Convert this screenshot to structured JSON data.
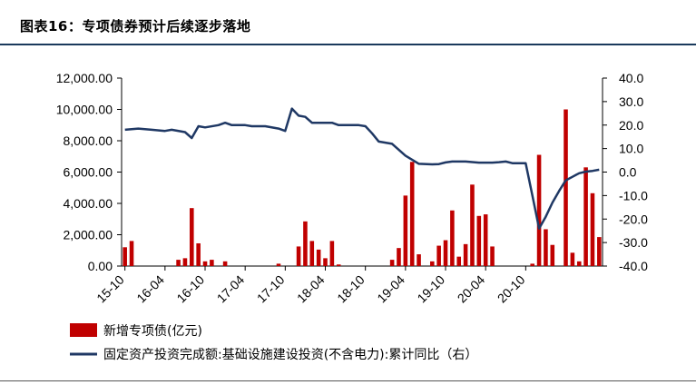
{
  "title": "图表16：专项债券预计后续逐步落地",
  "chart_data": {
    "type": "bar+line",
    "x_tick_labels": [
      "15-10",
      "16-04",
      "16-10",
      "17-04",
      "17-10",
      "18-04",
      "18-10",
      "19-04",
      "19-10",
      "20-04",
      "20-10"
    ],
    "left_axis": {
      "ylim": [
        0,
        12000
      ],
      "ticks": [
        "0.00",
        "2,000.00",
        "4,000.00",
        "6,000.00",
        "8,000.00",
        "10,000.00",
        "12,000.00"
      ]
    },
    "right_axis": {
      "ylim": [
        -40,
        40
      ],
      "ticks": [
        "-40.0",
        "-30.0",
        "-20.0",
        "-10.0",
        "0.0",
        "10.0",
        "20.0",
        "30.0",
        "40.0"
      ]
    },
    "series": [
      {
        "name": "新增专项债(亿元)",
        "type": "bar",
        "axis": "left",
        "color": "#c00000",
        "values": [
          1200,
          1600,
          0,
          0,
          0,
          0,
          0,
          0,
          400,
          500,
          3700,
          1450,
          300,
          400,
          0,
          300,
          0,
          0,
          0,
          0,
          0,
          0,
          0,
          150,
          0,
          0,
          1250,
          2850,
          1600,
          1050,
          500,
          1600,
          100,
          0,
          0,
          0,
          0,
          0,
          0,
          0,
          400,
          1150,
          4500,
          6650,
          750,
          0,
          300,
          1300,
          1650,
          3550,
          600,
          1400,
          5200,
          3200,
          3300,
          1250,
          0,
          0,
          0,
          0,
          0,
          150,
          7100,
          2350,
          1350,
          0,
          10000,
          850,
          300,
          6300,
          4650,
          1850
        ]
      },
      {
        "name": "固定资产投资完成额:基础设施建设投资(不含电力):累计同比（右）",
        "type": "line",
        "axis": "right",
        "color": "#1f3864",
        "points": [
          [
            0,
            18
          ],
          [
            2,
            18.5
          ],
          [
            4,
            18
          ],
          [
            6,
            17.5
          ],
          [
            7,
            18
          ],
          [
            9,
            17
          ],
          [
            10,
            14.5
          ],
          [
            11,
            19.5
          ],
          [
            12,
            19
          ],
          [
            14,
            20
          ],
          [
            15,
            21
          ],
          [
            16,
            20
          ],
          [
            18,
            20
          ],
          [
            19,
            19.5
          ],
          [
            21,
            19.5
          ],
          [
            23,
            18.5
          ],
          [
            24,
            17.5
          ],
          [
            25,
            27
          ],
          [
            26,
            24
          ],
          [
            27,
            23.5
          ],
          [
            28,
            21
          ],
          [
            29,
            21
          ],
          [
            31,
            21
          ],
          [
            32,
            20
          ],
          [
            34,
            20
          ],
          [
            35,
            20
          ],
          [
            36,
            19.5
          ],
          [
            37,
            16.5
          ],
          [
            38,
            13
          ],
          [
            40,
            12
          ],
          [
            42,
            7
          ],
          [
            44,
            3.5
          ],
          [
            46,
            3.3
          ],
          [
            47,
            3.4
          ],
          [
            48,
            4.1
          ],
          [
            49,
            4.5
          ],
          [
            51,
            4.5
          ],
          [
            53,
            4
          ],
          [
            55,
            4
          ],
          [
            56,
            4.2
          ],
          [
            57,
            4.5
          ],
          [
            58,
            3.8
          ],
          [
            60,
            3.8
          ],
          [
            61,
            -10
          ],
          [
            62,
            -24
          ],
          [
            63,
            -19
          ],
          [
            64,
            -13
          ],
          [
            65,
            -8
          ],
          [
            66,
            -3.5
          ],
          [
            67,
            -2
          ],
          [
            68,
            -0.5
          ],
          [
            69,
            0.2
          ],
          [
            70,
            0.5
          ],
          [
            71,
            1
          ]
        ]
      }
    ],
    "legend_placement": "bottom"
  }
}
